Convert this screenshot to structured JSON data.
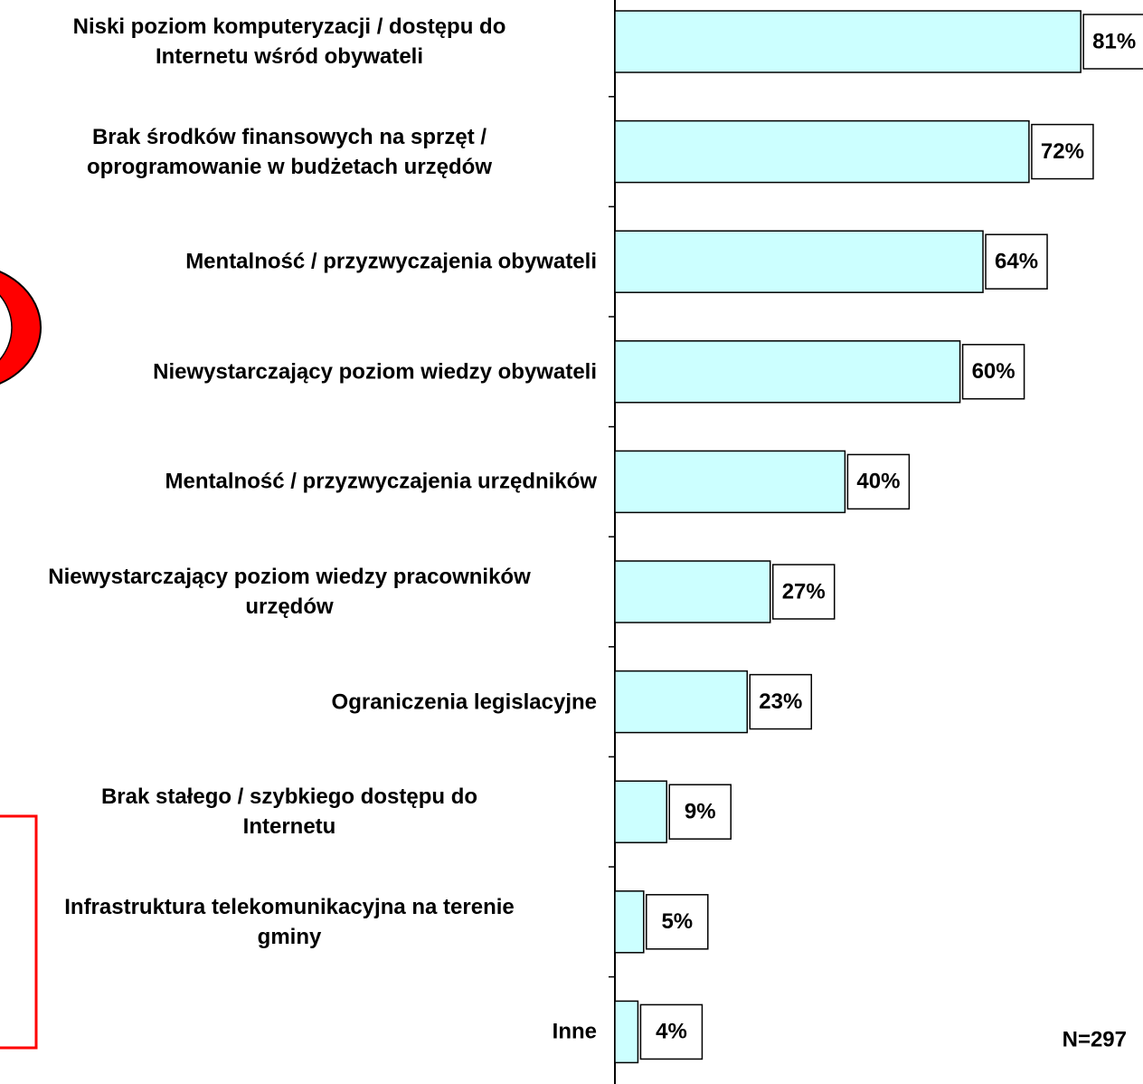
{
  "chart_data": {
    "type": "bar",
    "orientation": "horizontal",
    "categories": [
      "Niski poziom komputeryzacji / dostępu do\nInternetu wśród obywateli",
      "Brak środków finansowych na sprzęt /\noprogramowanie w budżetach urzędów",
      "Mentalność / przyzwyczajenia obywateli",
      "Niewystarczający poziom wiedzy obywateli",
      "Mentalność / przyzwyczajenia urzędników",
      "Niewystarczający poziom wiedzy pracowników\nurzędów",
      "Ograniczenia legislacyjne",
      "Brak stałego / szybkiego dostępu do\nInternetu",
      "Infrastruktura telekomunikacyjna na terenie\ngminy",
      "Inne"
    ],
    "values": [
      81,
      72,
      64,
      60,
      40,
      27,
      23,
      9,
      5,
      4
    ],
    "value_labels": [
      "81%",
      "72%",
      "64%",
      "60%",
      "40%",
      "27%",
      "23%",
      "9%",
      "5%",
      "4%"
    ],
    "color": "#ccffff",
    "annotation": "N=297"
  }
}
